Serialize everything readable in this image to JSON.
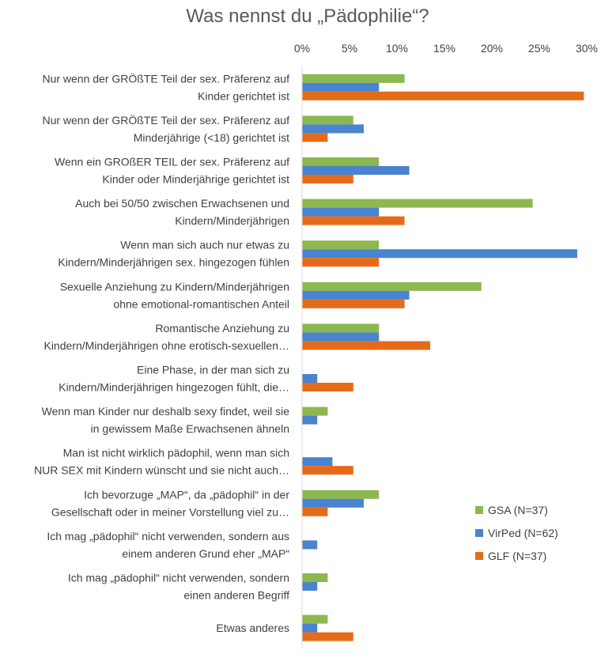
{
  "chart_data": {
    "type": "bar",
    "orientation": "horizontal",
    "title": "Was nennst du „Pädophilie“?",
    "xlabel": "",
    "ylabel": "",
    "xlim": [
      0,
      30
    ],
    "x_ticks": [
      "0%",
      "5%",
      "10%",
      "15%",
      "20%",
      "25%",
      "30%"
    ],
    "x_axis_position": "top",
    "gridlines": false,
    "legend_position": "bottom-right",
    "categories": [
      [
        "Nur wenn der GRÖßTE Teil der sex. Präferenz auf",
        "Kinder gerichtet ist"
      ],
      [
        "Nur wenn der GRÖßTE Teil der sex. Präferenz auf",
        "Minderjährige (<18) gerichtet ist"
      ],
      [
        "Wenn ein GROßER TEIL der sex. Präferenz auf",
        "Kinder oder Minderjährige gerichtet ist"
      ],
      [
        "Auch bei 50/50 zwischen Erwachsenen und",
        "Kindern/Minderjährigen"
      ],
      [
        "Wenn man sich auch nur etwas zu",
        "Kindern/Minderjährigen sex. hingezogen fühlen"
      ],
      [
        "Sexuelle Anziehung zu Kindern/Minderjährigen",
        "ohne emotional-romantischen Anteil"
      ],
      [
        "Romantische Anziehung zu",
        "Kindern/Minderjährigen ohne erotisch-sexuellen…"
      ],
      [
        "Eine Phase, in der man sich zu",
        "Kindern/Minderjährigen hingezogen fühlt, die…"
      ],
      [
        "Wenn man Kinder nur deshalb sexy findet, weil sie",
        "in gewissem Maße Erwachsenen ähneln"
      ],
      [
        "Man ist nicht wirklich pädophil, wenn man sich",
        "NUR SEX mit Kindern wünscht und sie nicht auch…"
      ],
      [
        "Ich bevorzuge „MAP“, da „pädophil“ in der",
        "Gesellschaft oder in meiner Vorstellung viel zu…"
      ],
      [
        "Ich mag „pädophil“ nicht verwenden, sondern aus",
        "einem anderen Grund eher „MAP“"
      ],
      [
        "Ich mag „pädophil“ nicht verwenden, sondern",
        "einen anderen Begriff"
      ],
      [
        "Etwas anderes"
      ]
    ],
    "series": [
      {
        "name": "GSA (N=37)",
        "color": "#8DB84F",
        "values": [
          10.8,
          5.4,
          8.1,
          24.3,
          8.1,
          18.9,
          8.1,
          0,
          2.7,
          0,
          8.1,
          0,
          2.7,
          2.7
        ]
      },
      {
        "name": "VirPed (N=62)",
        "color": "#4A83CF",
        "values": [
          8.1,
          6.5,
          11.3,
          8.1,
          29.0,
          11.3,
          8.1,
          1.6,
          1.6,
          3.2,
          6.5,
          1.6,
          1.6,
          1.6
        ]
      },
      {
        "name": "GLF (N=37)",
        "color": "#E56B1A",
        "values": [
          29.7,
          2.7,
          5.4,
          10.8,
          8.1,
          10.8,
          13.5,
          5.4,
          0,
          5.4,
          2.7,
          0,
          0,
          5.4
        ]
      }
    ]
  }
}
